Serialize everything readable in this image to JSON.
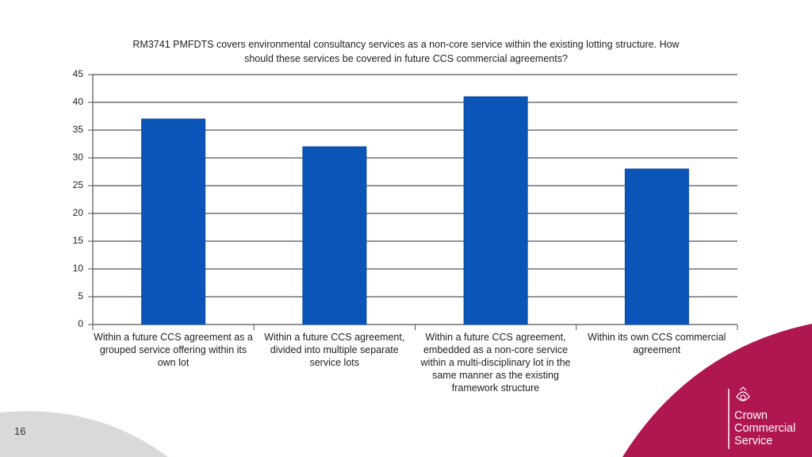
{
  "chart_data": {
    "type": "bar",
    "title": "RM3741 PMFDTS covers environmental consultancy services as a non-core service within the existing lotting structure. How should these services be covered in future CCS commercial agreements?",
    "categories": [
      "Within a future CCS agreement as a grouped service offering within its own lot",
      "Within a future CCS agreement, divided into multiple separate service lots",
      "Within a future CCS agreement, embedded as a non-core service within a multi-disciplinary lot in the same manner as the existing framework structure",
      "Within its own CCS commercial agreement"
    ],
    "values": [
      37,
      32,
      41,
      28
    ],
    "color": "#0b55b8",
    "ylim": [
      0,
      45
    ],
    "yticks": [
      0,
      5,
      10,
      15,
      20,
      25,
      30,
      35,
      40,
      45
    ],
    "grid": true
  },
  "slide": {
    "number": "16",
    "brand": [
      "Crown",
      "Commercial",
      "Service"
    ]
  }
}
